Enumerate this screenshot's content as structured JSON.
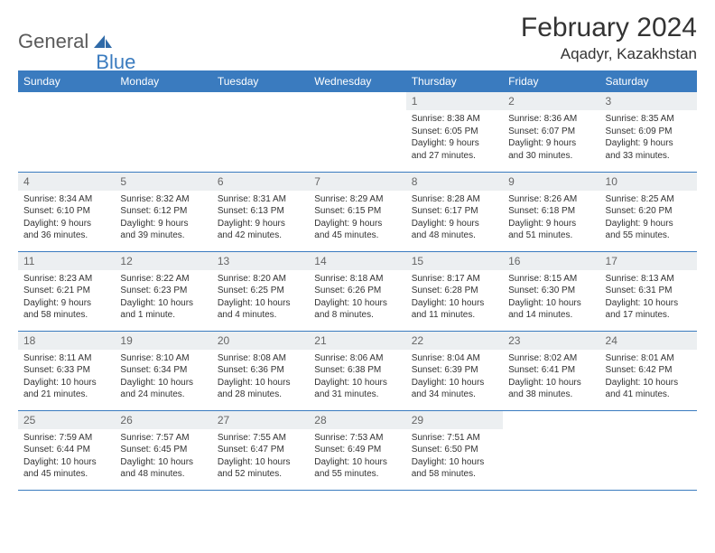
{
  "logo": {
    "part1": "General",
    "part2": "Blue"
  },
  "title": "February 2024",
  "location": "Aqadyr, Kazakhstan",
  "colors": {
    "header_bg": "#3a7bbf",
    "header_text": "#ffffff",
    "daynum_bg": "#eceff1",
    "daynum_text": "#666666",
    "text": "#333333",
    "divider": "#3a7bbf",
    "background": "#ffffff"
  },
  "typography": {
    "title_fontsize": 30,
    "location_fontsize": 17,
    "dayheader_fontsize": 12,
    "daynum_fontsize": 12,
    "content_fontsize": 10
  },
  "day_headers": [
    "Sunday",
    "Monday",
    "Tuesday",
    "Wednesday",
    "Thursday",
    "Friday",
    "Saturday"
  ],
  "weeks": [
    [
      {
        "blank": true
      },
      {
        "blank": true
      },
      {
        "blank": true
      },
      {
        "blank": true
      },
      {
        "n": "1",
        "sunrise": "Sunrise: 8:38 AM",
        "sunset": "Sunset: 6:05 PM",
        "day1": "Daylight: 9 hours",
        "day2": "and 27 minutes."
      },
      {
        "n": "2",
        "sunrise": "Sunrise: 8:36 AM",
        "sunset": "Sunset: 6:07 PM",
        "day1": "Daylight: 9 hours",
        "day2": "and 30 minutes."
      },
      {
        "n": "3",
        "sunrise": "Sunrise: 8:35 AM",
        "sunset": "Sunset: 6:09 PM",
        "day1": "Daylight: 9 hours",
        "day2": "and 33 minutes."
      }
    ],
    [
      {
        "n": "4",
        "sunrise": "Sunrise: 8:34 AM",
        "sunset": "Sunset: 6:10 PM",
        "day1": "Daylight: 9 hours",
        "day2": "and 36 minutes."
      },
      {
        "n": "5",
        "sunrise": "Sunrise: 8:32 AM",
        "sunset": "Sunset: 6:12 PM",
        "day1": "Daylight: 9 hours",
        "day2": "and 39 minutes."
      },
      {
        "n": "6",
        "sunrise": "Sunrise: 8:31 AM",
        "sunset": "Sunset: 6:13 PM",
        "day1": "Daylight: 9 hours",
        "day2": "and 42 minutes."
      },
      {
        "n": "7",
        "sunrise": "Sunrise: 8:29 AM",
        "sunset": "Sunset: 6:15 PM",
        "day1": "Daylight: 9 hours",
        "day2": "and 45 minutes."
      },
      {
        "n": "8",
        "sunrise": "Sunrise: 8:28 AM",
        "sunset": "Sunset: 6:17 PM",
        "day1": "Daylight: 9 hours",
        "day2": "and 48 minutes."
      },
      {
        "n": "9",
        "sunrise": "Sunrise: 8:26 AM",
        "sunset": "Sunset: 6:18 PM",
        "day1": "Daylight: 9 hours",
        "day2": "and 51 minutes."
      },
      {
        "n": "10",
        "sunrise": "Sunrise: 8:25 AM",
        "sunset": "Sunset: 6:20 PM",
        "day1": "Daylight: 9 hours",
        "day2": "and 55 minutes."
      }
    ],
    [
      {
        "n": "11",
        "sunrise": "Sunrise: 8:23 AM",
        "sunset": "Sunset: 6:21 PM",
        "day1": "Daylight: 9 hours",
        "day2": "and 58 minutes."
      },
      {
        "n": "12",
        "sunrise": "Sunrise: 8:22 AM",
        "sunset": "Sunset: 6:23 PM",
        "day1": "Daylight: 10 hours",
        "day2": "and 1 minute."
      },
      {
        "n": "13",
        "sunrise": "Sunrise: 8:20 AM",
        "sunset": "Sunset: 6:25 PM",
        "day1": "Daylight: 10 hours",
        "day2": "and 4 minutes."
      },
      {
        "n": "14",
        "sunrise": "Sunrise: 8:18 AM",
        "sunset": "Sunset: 6:26 PM",
        "day1": "Daylight: 10 hours",
        "day2": "and 8 minutes."
      },
      {
        "n": "15",
        "sunrise": "Sunrise: 8:17 AM",
        "sunset": "Sunset: 6:28 PM",
        "day1": "Daylight: 10 hours",
        "day2": "and 11 minutes."
      },
      {
        "n": "16",
        "sunrise": "Sunrise: 8:15 AM",
        "sunset": "Sunset: 6:30 PM",
        "day1": "Daylight: 10 hours",
        "day2": "and 14 minutes."
      },
      {
        "n": "17",
        "sunrise": "Sunrise: 8:13 AM",
        "sunset": "Sunset: 6:31 PM",
        "day1": "Daylight: 10 hours",
        "day2": "and 17 minutes."
      }
    ],
    [
      {
        "n": "18",
        "sunrise": "Sunrise: 8:11 AM",
        "sunset": "Sunset: 6:33 PM",
        "day1": "Daylight: 10 hours",
        "day2": "and 21 minutes."
      },
      {
        "n": "19",
        "sunrise": "Sunrise: 8:10 AM",
        "sunset": "Sunset: 6:34 PM",
        "day1": "Daylight: 10 hours",
        "day2": "and 24 minutes."
      },
      {
        "n": "20",
        "sunrise": "Sunrise: 8:08 AM",
        "sunset": "Sunset: 6:36 PM",
        "day1": "Daylight: 10 hours",
        "day2": "and 28 minutes."
      },
      {
        "n": "21",
        "sunrise": "Sunrise: 8:06 AM",
        "sunset": "Sunset: 6:38 PM",
        "day1": "Daylight: 10 hours",
        "day2": "and 31 minutes."
      },
      {
        "n": "22",
        "sunrise": "Sunrise: 8:04 AM",
        "sunset": "Sunset: 6:39 PM",
        "day1": "Daylight: 10 hours",
        "day2": "and 34 minutes."
      },
      {
        "n": "23",
        "sunrise": "Sunrise: 8:02 AM",
        "sunset": "Sunset: 6:41 PM",
        "day1": "Daylight: 10 hours",
        "day2": "and 38 minutes."
      },
      {
        "n": "24",
        "sunrise": "Sunrise: 8:01 AM",
        "sunset": "Sunset: 6:42 PM",
        "day1": "Daylight: 10 hours",
        "day2": "and 41 minutes."
      }
    ],
    [
      {
        "n": "25",
        "sunrise": "Sunrise: 7:59 AM",
        "sunset": "Sunset: 6:44 PM",
        "day1": "Daylight: 10 hours",
        "day2": "and 45 minutes."
      },
      {
        "n": "26",
        "sunrise": "Sunrise: 7:57 AM",
        "sunset": "Sunset: 6:45 PM",
        "day1": "Daylight: 10 hours",
        "day2": "and 48 minutes."
      },
      {
        "n": "27",
        "sunrise": "Sunrise: 7:55 AM",
        "sunset": "Sunset: 6:47 PM",
        "day1": "Daylight: 10 hours",
        "day2": "and 52 minutes."
      },
      {
        "n": "28",
        "sunrise": "Sunrise: 7:53 AM",
        "sunset": "Sunset: 6:49 PM",
        "day1": "Daylight: 10 hours",
        "day2": "and 55 minutes."
      },
      {
        "n": "29",
        "sunrise": "Sunrise: 7:51 AM",
        "sunset": "Sunset: 6:50 PM",
        "day1": "Daylight: 10 hours",
        "day2": "and 58 minutes."
      },
      {
        "blank": true
      },
      {
        "blank": true
      }
    ]
  ]
}
